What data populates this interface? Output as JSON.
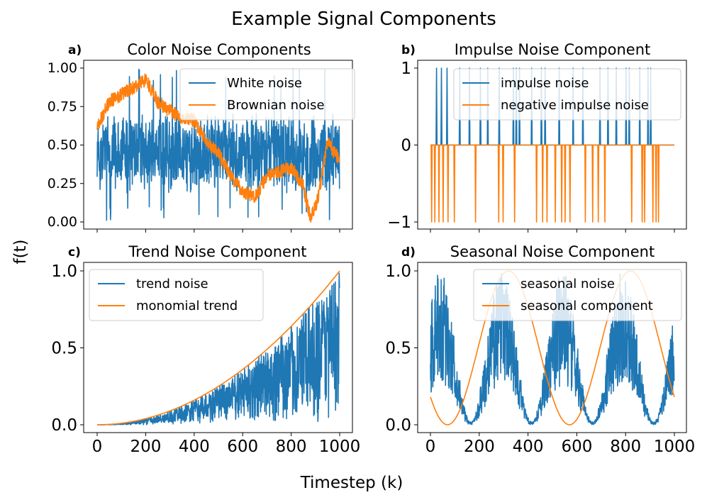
{
  "figure": {
    "title": "Example Signal Components",
    "xlabel": "Timestep (k)",
    "ylabel": "f(t)"
  },
  "colors": {
    "blue": "#1f77b4",
    "orange": "#ff7f0e"
  },
  "chart_data": [
    {
      "id": "a",
      "panel_label": "a)",
      "type": "line",
      "title": "Color Noise Components",
      "xlim": [
        0,
        1000
      ],
      "ylim": [
        0,
        1
      ],
      "x_ticks": [
        0,
        200,
        400,
        600,
        800,
        1000
      ],
      "x_tick_labels_shown": false,
      "y_ticks": [
        0.0,
        0.25,
        0.5,
        0.75,
        1.0
      ],
      "y_tick_labels": [
        "0.00",
        "0.25",
        "0.50",
        "0.75",
        "1.00"
      ],
      "legend_position": "upper right",
      "series": [
        {
          "name": "White noise",
          "generator": "white",
          "mean": 0.45,
          "spread": 0.27,
          "n_points": 1000
        },
        {
          "name": "Brownian noise",
          "generator": "brownian",
          "anchors_x": [
            0,
            50,
            100,
            150,
            200,
            250,
            300,
            350,
            400,
            450,
            500,
            550,
            600,
            650,
            700,
            750,
            800,
            850,
            880,
            910,
            950,
            1000
          ],
          "anchors_y": [
            0.62,
            0.78,
            0.83,
            0.87,
            0.93,
            0.78,
            0.72,
            0.68,
            0.66,
            0.52,
            0.45,
            0.3,
            0.2,
            0.16,
            0.3,
            0.32,
            0.36,
            0.23,
            0.02,
            0.15,
            0.52,
            0.4
          ]
        }
      ]
    },
    {
      "id": "b",
      "panel_label": "b)",
      "type": "line",
      "title": "Impulse Noise Component",
      "xlim": [
        0,
        1000
      ],
      "ylim": [
        -1,
        1
      ],
      "x_ticks": [
        0,
        200,
        400,
        600,
        800,
        1000
      ],
      "x_tick_labels_shown": false,
      "y_ticks": [
        -1,
        0,
        1
      ],
      "y_tick_labels": [
        "−1",
        "0",
        "1"
      ],
      "legend_position": "upper right",
      "series": [
        {
          "name": "impulse noise",
          "baseline": 0,
          "spikes_x": [
            25,
            45,
            68,
            120,
            160,
            205,
            235,
            282,
            340,
            352,
            365,
            415,
            455,
            470,
            528,
            585,
            625,
            695,
            728,
            762,
            802,
            815,
            858,
            892,
            903
          ]
        },
        {
          "name": "negative impulse noise",
          "baseline": 0,
          "spikes_x": [
            5,
            18,
            35,
            52,
            72,
            98,
            185,
            280,
            298,
            345,
            435,
            460,
            478,
            512,
            538,
            552,
            572,
            635,
            665,
            688,
            715,
            825,
            868,
            878,
            912,
            925,
            935
          ]
        }
      ]
    },
    {
      "id": "c",
      "panel_label": "c)",
      "type": "line",
      "title": "Trend Noise Component",
      "xlim": [
        0,
        1000
      ],
      "ylim": [
        0,
        1
      ],
      "x_ticks": [
        0,
        200,
        400,
        600,
        800,
        1000
      ],
      "x_tick_labels": [
        "0",
        "200",
        "400",
        "600",
        "800",
        "1000"
      ],
      "y_ticks": [
        0.0,
        0.5,
        1.0
      ],
      "y_tick_labels": [
        "0.0",
        "0.5",
        "1.0"
      ],
      "legend_position": "upper left",
      "series": [
        {
          "name": "trend noise",
          "generator": "uniform_below_trend",
          "n_points": 1000
        },
        {
          "name": "monomial trend",
          "formula": "(k/1000)^2"
        }
      ]
    },
    {
      "id": "d",
      "panel_label": "d)",
      "type": "line",
      "title": "Seasonal Noise Component",
      "xlim": [
        0,
        1000
      ],
      "ylim": [
        0,
        1
      ],
      "x_ticks": [
        0,
        200,
        400,
        600,
        800,
        1000
      ],
      "x_tick_labels": [
        "0",
        "200",
        "400",
        "600",
        "800",
        "1000"
      ],
      "y_ticks": [
        0.0,
        0.5,
        1.0
      ],
      "y_tick_labels": [
        "0.0",
        "0.5",
        "1.0"
      ],
      "legend_position": "upper right",
      "series": [
        {
          "name": "seasonal noise",
          "generator": "uniform_below_seasonal",
          "period": 250,
          "phase_deg": 0,
          "n_points": 1000
        },
        {
          "name": "seasonal component",
          "period": 500,
          "peak_k": [
            320,
            820
          ],
          "trough_k": [
            70,
            570
          ],
          "amplitude": 0.5,
          "offset": 0.5
        }
      ]
    }
  ]
}
